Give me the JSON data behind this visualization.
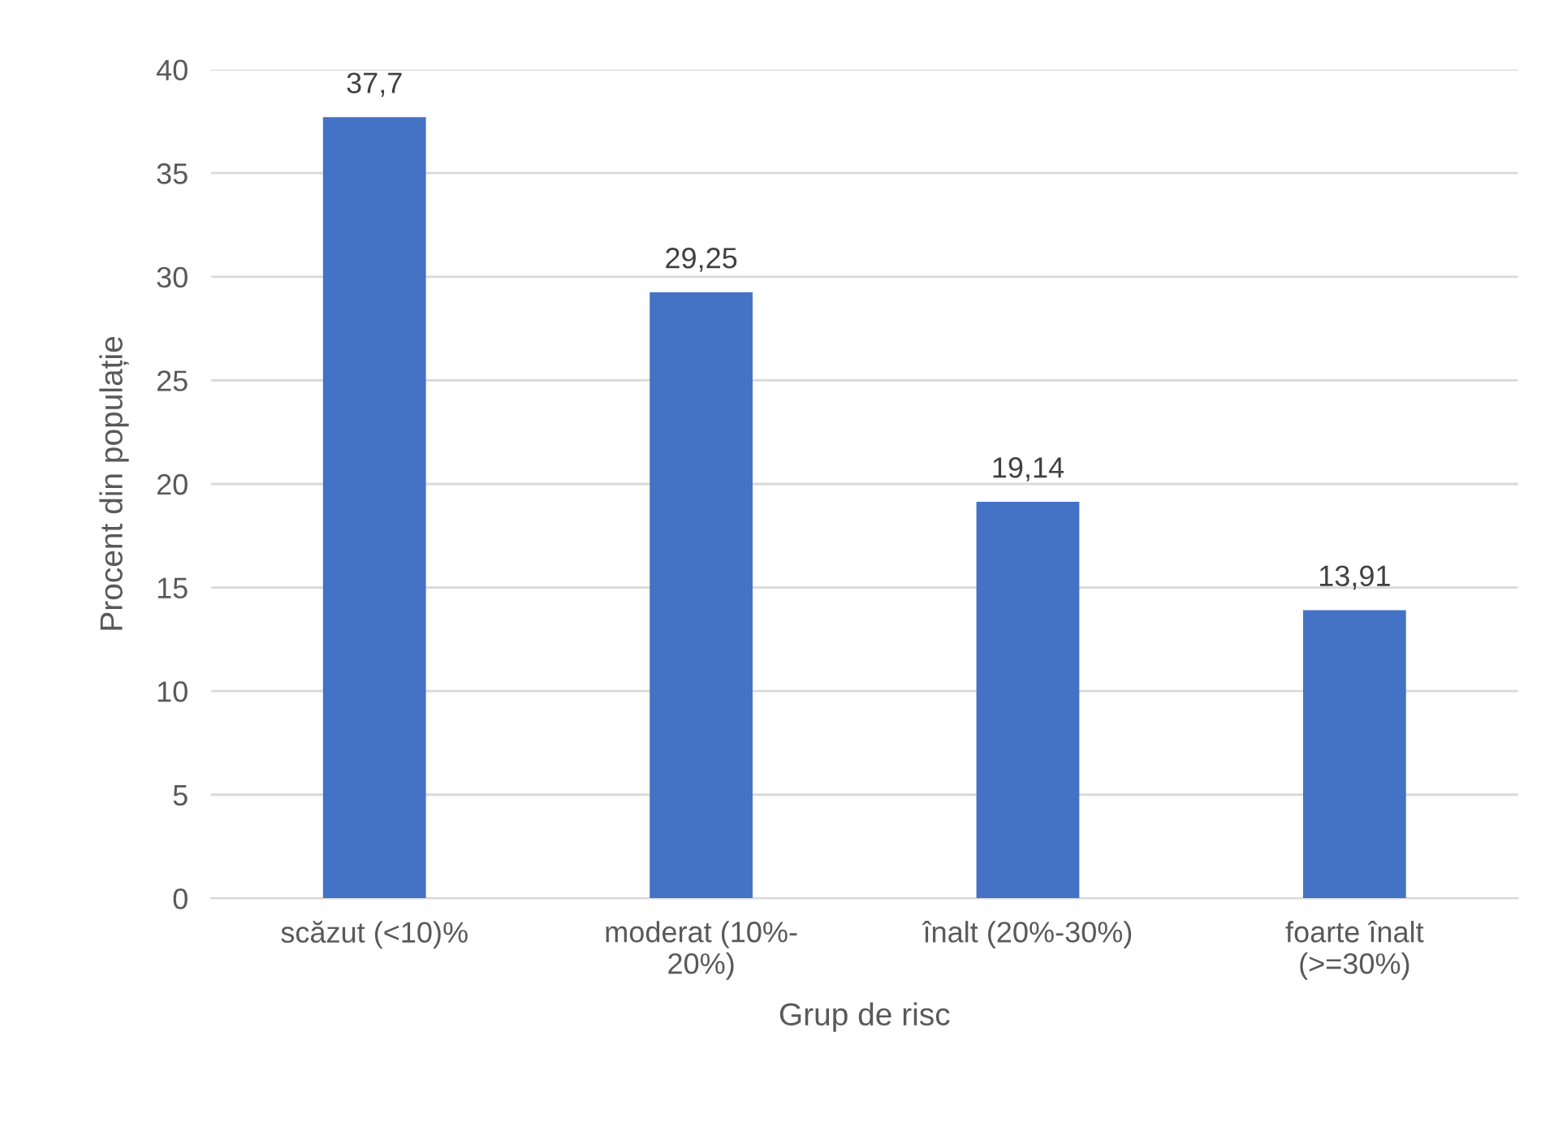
{
  "chart_data": {
    "type": "bar",
    "xlabel": "Grup de risc",
    "ylabel": "Procent din populație",
    "categories": [
      "scăzut (<10)%",
      "moderat (10%-\n20%)",
      "înalt (20%-30%)",
      "foarte înalt\n(>=30%)"
    ],
    "values": [
      37.7,
      29.25,
      19.14,
      13.91
    ],
    "value_labels": [
      "37,7",
      "29,25",
      "19,14",
      "13,91"
    ],
    "color": "#4472c4",
    "ylim": [
      0,
      40
    ],
    "yticks": [
      0,
      5,
      10,
      15,
      20,
      25,
      30,
      35,
      40
    ],
    "grid": "y",
    "legend": false
  }
}
